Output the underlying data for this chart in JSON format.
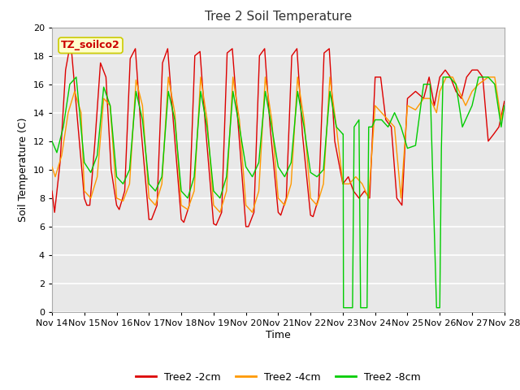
{
  "title": "Tree 2 Soil Temperature",
  "ylabel": "Soil Temperature (C)",
  "xlabel": "Time",
  "annotation_label": "TZ_soilco2",
  "ylim": [
    0,
    20
  ],
  "plot_bg_color": "#e8e8e8",
  "fig_bg_color": "#ffffff",
  "grid_color": "#ffffff",
  "legend_entries": [
    "Tree2 -2cm",
    "Tree2 -4cm",
    "Tree2 -8cm"
  ],
  "legend_colors": [
    "#dd0000",
    "#ff9900",
    "#00cc00"
  ],
  "xtick_labels": [
    "Nov 14",
    "Nov 15",
    "Nov 16",
    "Nov 17",
    "Nov 18",
    "Nov 19",
    "Nov 20",
    "Nov 21",
    "Nov 22",
    "Nov 23",
    "Nov 24",
    "Nov 25",
    "Nov 26",
    "Nov 27",
    "Nov 28"
  ],
  "series": {
    "red_2cm": {
      "x": [
        0.0,
        0.08,
        0.25,
        0.42,
        0.58,
        0.75,
        1.0,
        1.08,
        1.17,
        1.33,
        1.5,
        1.67,
        1.83,
        2.0,
        2.08,
        2.25,
        2.42,
        2.58,
        2.75,
        3.0,
        3.08,
        3.25,
        3.42,
        3.58,
        3.75,
        4.0,
        4.08,
        4.25,
        4.42,
        4.58,
        4.75,
        5.0,
        5.08,
        5.25,
        5.42,
        5.58,
        5.75,
        6.0,
        6.08,
        6.25,
        6.42,
        6.58,
        6.75,
        7.0,
        7.08,
        7.25,
        7.42,
        7.58,
        7.75,
        8.0,
        8.08,
        8.25,
        8.42,
        8.58,
        8.75,
        9.0,
        9.17,
        9.33,
        9.5,
        9.67,
        9.83,
        10.0,
        10.17,
        10.33,
        10.5,
        10.67,
        10.83,
        11.0,
        11.25,
        11.5,
        11.67,
        11.83,
        12.0,
        12.17,
        12.33,
        12.5,
        12.67,
        12.83,
        13.0,
        13.17,
        13.33,
        13.5,
        13.67,
        13.83,
        14.0
      ],
      "y": [
        8.5,
        7.0,
        10.5,
        17.0,
        19.0,
        14.5,
        8.0,
        7.5,
        7.5,
        12.0,
        17.5,
        16.5,
        10.0,
        7.5,
        7.2,
        8.5,
        17.8,
        18.5,
        13.0,
        6.5,
        6.5,
        7.5,
        17.5,
        18.5,
        13.5,
        6.5,
        6.3,
        7.5,
        18.0,
        18.3,
        13.0,
        6.2,
        6.1,
        7.0,
        18.2,
        18.5,
        13.5,
        6.0,
        6.0,
        7.0,
        18.0,
        18.5,
        13.0,
        7.0,
        6.8,
        8.0,
        18.0,
        18.5,
        12.5,
        6.8,
        6.7,
        8.0,
        18.2,
        18.5,
        12.0,
        9.0,
        9.5,
        8.5,
        8.0,
        8.5,
        8.0,
        16.5,
        16.5,
        13.5,
        13.0,
        8.0,
        7.5,
        15.0,
        15.5,
        15.0,
        16.5,
        14.5,
        16.5,
        17.0,
        16.5,
        15.5,
        15.0,
        16.5,
        17.0,
        17.0,
        16.5,
        12.0,
        12.5,
        13.0,
        14.8
      ]
    },
    "orange_4cm": {
      "x": [
        0.0,
        0.1,
        0.3,
        0.5,
        0.7,
        0.9,
        1.0,
        1.2,
        1.4,
        1.6,
        1.8,
        2.0,
        2.2,
        2.4,
        2.6,
        2.8,
        3.0,
        3.2,
        3.4,
        3.6,
        3.8,
        4.0,
        4.2,
        4.4,
        4.6,
        4.8,
        5.0,
        5.2,
        5.4,
        5.6,
        5.8,
        6.0,
        6.2,
        6.4,
        6.6,
        6.8,
        7.0,
        7.2,
        7.4,
        7.6,
        7.8,
        8.0,
        8.2,
        8.4,
        8.6,
        8.8,
        9.0,
        9.2,
        9.4,
        9.6,
        9.8,
        10.0,
        10.2,
        10.4,
        10.6,
        10.8,
        11.0,
        11.25,
        11.5,
        11.7,
        11.9,
        12.0,
        12.2,
        12.4,
        12.6,
        12.8,
        13.0,
        13.2,
        13.5,
        13.7,
        13.9,
        14.0
      ],
      "y": [
        10.2,
        9.5,
        11.0,
        14.0,
        15.5,
        14.0,
        8.5,
        8.0,
        9.5,
        15.0,
        14.5,
        8.0,
        7.8,
        9.0,
        16.3,
        14.5,
        8.0,
        7.5,
        9.0,
        16.5,
        14.0,
        7.5,
        7.2,
        8.5,
        16.5,
        13.5,
        7.5,
        7.0,
        8.5,
        16.5,
        13.5,
        7.5,
        7.0,
        8.5,
        16.5,
        13.5,
        8.0,
        7.5,
        9.0,
        16.5,
        13.5,
        8.0,
        7.5,
        9.0,
        16.5,
        13.0,
        9.0,
        9.0,
        9.5,
        9.0,
        8.0,
        14.5,
        14.0,
        13.5,
        13.0,
        8.0,
        14.5,
        14.2,
        15.0,
        15.0,
        14.0,
        15.5,
        16.5,
        16.5,
        15.5,
        14.5,
        15.5,
        16.0,
        16.5,
        16.5,
        13.5,
        14.5
      ]
    },
    "green_8cm": {
      "x": [
        0.0,
        0.15,
        0.35,
        0.55,
        0.75,
        1.0,
        1.2,
        1.4,
        1.6,
        1.8,
        2.0,
        2.2,
        2.4,
        2.6,
        2.8,
        3.0,
        3.2,
        3.4,
        3.6,
        3.8,
        4.0,
        4.2,
        4.4,
        4.6,
        4.8,
        5.0,
        5.2,
        5.4,
        5.6,
        5.8,
        6.0,
        6.2,
        6.4,
        6.6,
        6.8,
        7.0,
        7.2,
        7.4,
        7.6,
        7.8,
        8.0,
        8.2,
        8.4,
        8.6,
        8.8,
        9.0,
        9.01,
        9.02,
        9.1,
        9.15,
        9.25,
        9.3,
        9.35,
        9.5,
        9.55,
        9.6,
        9.65,
        9.7,
        9.75,
        9.8,
        9.9,
        10.0,
        10.2,
        10.4,
        10.6,
        10.8,
        11.0,
        11.25,
        11.5,
        11.7,
        11.9,
        11.91,
        11.92,
        12.0,
        12.05,
        12.1,
        12.3,
        12.5,
        12.7,
        13.0,
        13.2,
        13.5,
        13.7,
        13.9,
        14.0
      ],
      "y": [
        12.0,
        11.2,
        13.0,
        16.0,
        16.5,
        10.5,
        9.8,
        11.0,
        15.8,
        14.5,
        9.5,
        9.0,
        10.0,
        15.5,
        13.5,
        9.0,
        8.5,
        9.5,
        15.5,
        13.5,
        8.5,
        8.0,
        9.5,
        15.5,
        13.0,
        8.5,
        8.0,
        9.5,
        15.5,
        13.0,
        10.2,
        9.5,
        10.5,
        15.5,
        13.0,
        10.2,
        9.5,
        10.5,
        15.5,
        13.0,
        9.8,
        9.5,
        10.0,
        15.5,
        13.0,
        12.5,
        12.5,
        0.3,
        0.3,
        0.3,
        0.3,
        0.3,
        13.0,
        13.5,
        0.3,
        0.3,
        0.3,
        0.3,
        0.3,
        13.0,
        13.0,
        13.5,
        13.5,
        13.0,
        14.0,
        13.0,
        11.5,
        11.7,
        16.0,
        16.0,
        0.3,
        0.3,
        0.3,
        0.3,
        11.5,
        16.5,
        16.5,
        16.0,
        13.0,
        14.5,
        16.5,
        16.5,
        16.0,
        13.0,
        14.5
      ]
    }
  }
}
